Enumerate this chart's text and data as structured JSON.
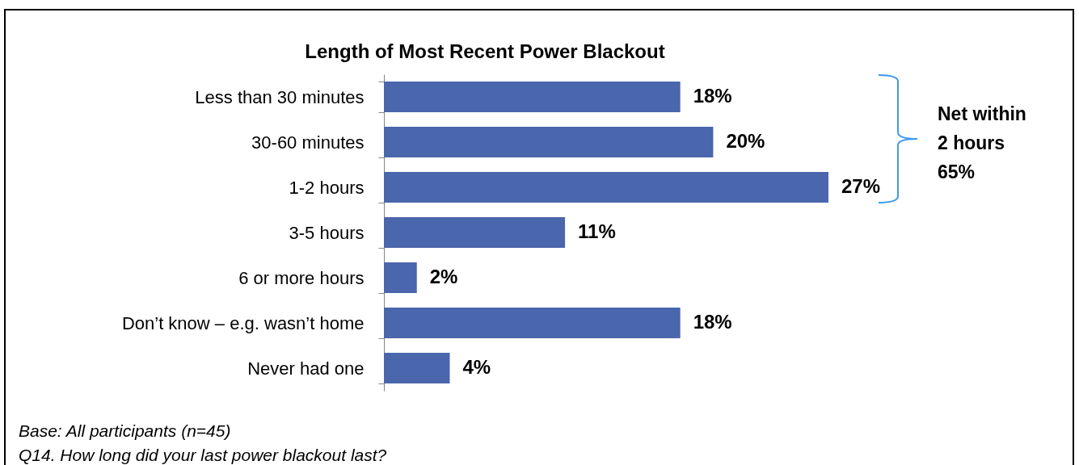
{
  "chart_data": {
    "type": "bar",
    "orientation": "horizontal",
    "title": "Length of Most Recent Power Blackout",
    "categories": [
      "Less than 30 minutes",
      "30-60 minutes",
      "1-2 hours",
      "3-5 hours",
      "6 or more hours",
      "Don’t know – e.g. wasn’t home",
      "Never had one"
    ],
    "values": [
      18,
      20,
      27,
      11,
      2,
      18,
      4
    ],
    "value_labels": [
      "18%",
      "20%",
      "27%",
      "11%",
      "2%",
      "18%",
      "4%"
    ],
    "color": "#4a66ac",
    "tick_labels": "y",
    "annotations": [
      "Net within\n2 hours\n65%",
      "Base: All participants (n=45)",
      "Q14. How long did your last power blackout last?"
    ]
  }
}
